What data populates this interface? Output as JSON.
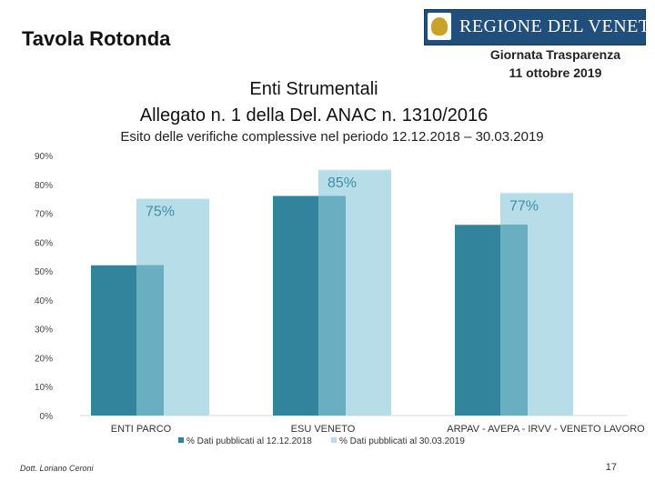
{
  "header": {
    "title": "Tavola Rotonda",
    "logo_text": "REGIONE DEL VENETO",
    "event_line1": "Giornata Trasparenza",
    "event_line2": "11 ottobre 2019"
  },
  "slide": {
    "title_line1": "Enti Strumentali",
    "title_line2": "Allegato n. 1 della Del. ANAC n. 1310/2016"
  },
  "chart_data": {
    "type": "bar",
    "title": "Esito delle verifiche complessive nel periodo 12.12.2018 – 30.03.2019",
    "categories": [
      "ENTI PARCO",
      "ESU VENETO",
      "ARPAV - AVEPA - IRVV - VENETO LAVORO"
    ],
    "series": [
      {
        "name": "% Dati pubblicati al 12.12.2018",
        "values": [
          52,
          76,
          66
        ],
        "labels": [
          "52%",
          "76%",
          "66%"
        ],
        "color": "#31849b"
      },
      {
        "name": "% Dati pubblicati al 30.03.2019",
        "values": [
          75,
          85,
          77
        ],
        "labels": [
          "75%",
          "85%",
          "77%"
        ],
        "color": "#b7dde8"
      }
    ],
    "overlap_color": "#6aaec2",
    "ylim": [
      0,
      90
    ],
    "yticks": [
      "0%",
      "10%",
      "20%",
      "30%",
      "40%",
      "50%",
      "60%",
      "70%",
      "80%",
      "90%"
    ],
    "grid": false,
    "legend": "bottom"
  },
  "footer": {
    "author": "Dott. Loriano Ceroni",
    "page": "17"
  }
}
